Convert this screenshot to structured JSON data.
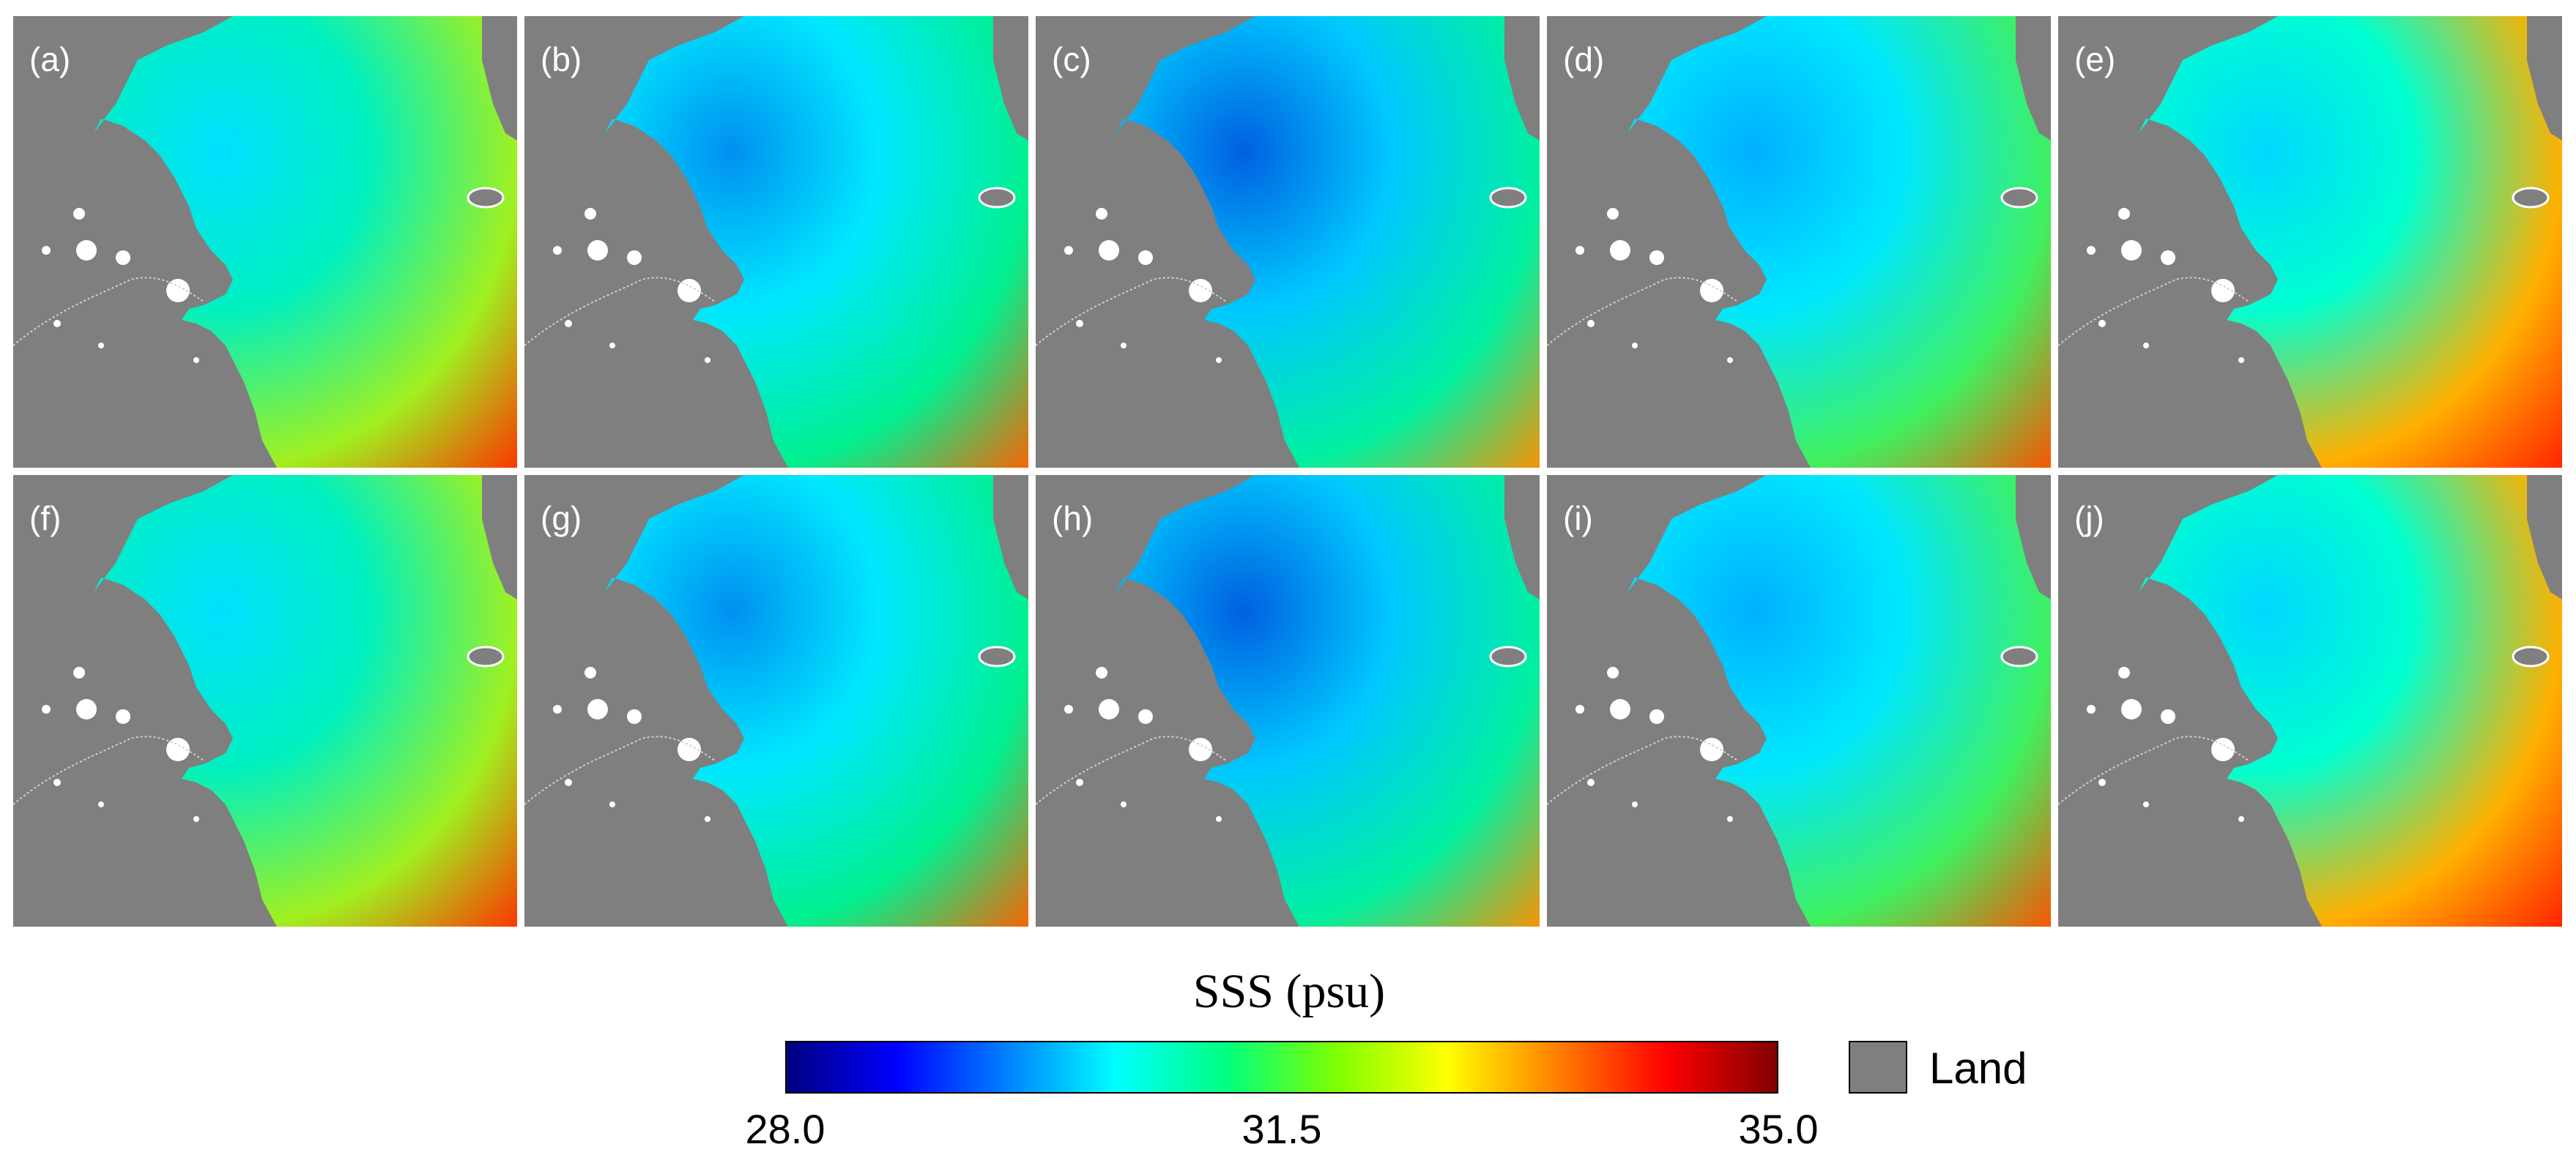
{
  "panels": [
    {
      "label": "(a)",
      "grad": "g0"
    },
    {
      "label": "(b)",
      "grad": "g1"
    },
    {
      "label": "(c)",
      "grad": "g2"
    },
    {
      "label": "(d)",
      "grad": "g3"
    },
    {
      "label": "(e)",
      "grad": "g4"
    },
    {
      "label": "(f)",
      "grad": "g0"
    },
    {
      "label": "(g)",
      "grad": "g1"
    },
    {
      "label": "(h)",
      "grad": "g2"
    },
    {
      "label": "(i)",
      "grad": "g3"
    },
    {
      "label": "(j)",
      "grad": "g4"
    }
  ],
  "legend": {
    "title": "SSS (psu)",
    "min_label": "28.0",
    "mid_label": "31.5",
    "max_label": "35.0",
    "min": 28.0,
    "mid": 31.5,
    "max": 35.0,
    "colormap": [
      "#000080",
      "#0000ff",
      "#0080ff",
      "#00ffff",
      "#00ff80",
      "#80ff00",
      "#ffff00",
      "#ff8000",
      "#ff0000",
      "#800000"
    ],
    "land_label": "Land",
    "land_color": "#7f7f7f"
  }
}
